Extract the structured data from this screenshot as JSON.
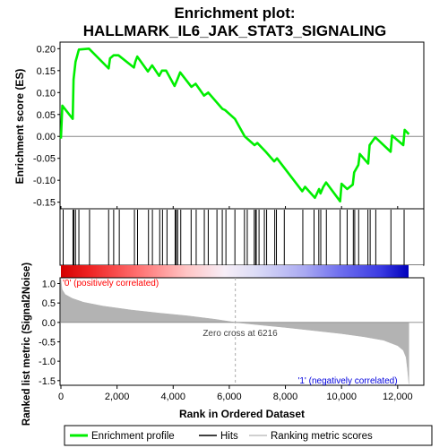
{
  "chart_data": {
    "type": "line",
    "title_lines": [
      "Enrichment plot:",
      "HALLMARK_IL6_JAK_STAT3_SIGNALING"
    ],
    "ylabel_es": "Enrichment score (ES)",
    "ylabel_metric": "Ranked list metric (Signal2Noise)",
    "xlabel": "Rank in Ordered Dataset",
    "x_ticks": [
      "0",
      "2,000",
      "4,000",
      "6,000",
      "8,000",
      "10,000",
      "12,000"
    ],
    "x_tick_values": [
      0,
      2000,
      4000,
      6000,
      8000,
      10000,
      12000
    ],
    "es_y_ticks": [
      "0.20",
      "0.15",
      "0.10",
      "0.05",
      "0.00",
      "-0.05",
      "-0.10",
      "-0.15"
    ],
    "es_y_tick_values": [
      0.2,
      0.15,
      0.1,
      0.05,
      0.0,
      -0.05,
      -0.1,
      -0.15
    ],
    "metric_y_ticks": [
      "1.0",
      "0.5",
      "0.0",
      "-0.5",
      "-1.0",
      "-1.5"
    ],
    "metric_y_tick_values": [
      1.0,
      0.5,
      0.0,
      -0.5,
      -1.0,
      -1.5
    ],
    "es_ylim": [
      -0.165,
      0.215
    ],
    "metric_ylim": [
      -1.62,
      1.15
    ],
    "xlim": [
      0,
      12900
    ],
    "n_genes": 12400,
    "zero_cross_label": "Zero cross at 6216",
    "zero_cross": 6216,
    "pos_label": "'0' (positively correlated)",
    "neg_label": "'1' (negatively correlated)",
    "legend": [
      "Enrichment profile",
      "Hits",
      "Ranking metric scores"
    ],
    "colors": {
      "enrichment": "#00ee00",
      "pos_label": "#ff0000",
      "neg_label": "#0000dd",
      "metric_fill": "#b3b3b3"
    },
    "enrichment_profile": {
      "x": [
        0,
        50,
        420,
        450,
        520,
        640,
        1000,
        1700,
        1750,
        1880,
        2050,
        2600,
        2650,
        2720,
        3100,
        3250,
        3500,
        3600,
        3750,
        4050,
        4150,
        4250,
        4650,
        4800,
        5100,
        5250,
        5750,
        5850,
        6200,
        6550,
        6900,
        7000,
        7300,
        7600,
        7700,
        8000,
        8600,
        8700,
        9050,
        9200,
        9250,
        9350,
        9450,
        9950,
        10000,
        10200,
        10400,
        10450,
        10600,
        10650,
        10950,
        11000,
        11200,
        11750,
        11800,
        12200,
        12250,
        12400
      ],
      "y": [
        -0.005,
        0.07,
        0.04,
        0.13,
        0.17,
        0.198,
        0.2,
        0.155,
        0.178,
        0.185,
        0.185,
        0.157,
        0.17,
        0.182,
        0.148,
        0.162,
        0.138,
        0.15,
        0.15,
        0.115,
        0.13,
        0.146,
        0.113,
        0.12,
        0.093,
        0.1,
        0.063,
        0.06,
        0.04,
        0.0,
        -0.02,
        -0.015,
        -0.035,
        -0.057,
        -0.05,
        -0.075,
        -0.125,
        -0.115,
        -0.14,
        -0.12,
        -0.13,
        -0.115,
        -0.105,
        -0.148,
        -0.108,
        -0.12,
        -0.11,
        -0.082,
        -0.065,
        -0.04,
        -0.062,
        -0.02,
        -0.002,
        -0.035,
        0.002,
        -0.02,
        0.015,
        0.005
      ]
    },
    "hit_ranks": [
      80,
      430,
      460,
      520,
      640,
      1020,
      1700,
      1880,
      2080,
      2620,
      2730,
      3120,
      3260,
      3520,
      3620,
      3780,
      4070,
      4110,
      4160,
      4270,
      4640,
      4820,
      5110,
      5250,
      5560,
      5750,
      5880,
      6200,
      6540,
      6640,
      6890,
      6940,
      6960,
      7060,
      7250,
      7330,
      7620,
      7680,
      7960,
      8620,
      9020,
      9190,
      9260,
      9460,
      9950,
      10200,
      10420,
      10470,
      10610,
      10940,
      11020,
      11220,
      11760,
      12230
    ],
    "metric_curve": {
      "x": [
        0,
        40,
        150,
        400,
        800,
        1500,
        2500,
        3500,
        4500,
        5500,
        6216,
        7000,
        8000,
        9000,
        10000,
        10800,
        11500,
        12000,
        12200,
        12300,
        12350,
        12400
      ],
      "y": [
        1.1,
        0.85,
        0.72,
        0.62,
        0.52,
        0.42,
        0.32,
        0.24,
        0.17,
        0.08,
        0.0,
        -0.06,
        -0.13,
        -0.21,
        -0.29,
        -0.37,
        -0.46,
        -0.6,
        -0.72,
        -0.9,
        -1.2,
        -1.58
      ]
    },
    "rank_gradient_stops": [
      {
        "at": 0.0,
        "color": "#d40000"
      },
      {
        "at": 0.08,
        "color": "#ee2222"
      },
      {
        "at": 0.22,
        "color": "#ff6f6f"
      },
      {
        "at": 0.36,
        "color": "#ffc4c4"
      },
      {
        "at": 0.47,
        "color": "#f7eef7"
      },
      {
        "at": 0.56,
        "color": "#dcdcf6"
      },
      {
        "at": 0.7,
        "color": "#a9a9f2"
      },
      {
        "at": 0.8,
        "color": "#7070ee"
      },
      {
        "at": 0.92,
        "color": "#3a3ae2"
      },
      {
        "at": 1.0,
        "color": "#0000bb"
      }
    ]
  }
}
